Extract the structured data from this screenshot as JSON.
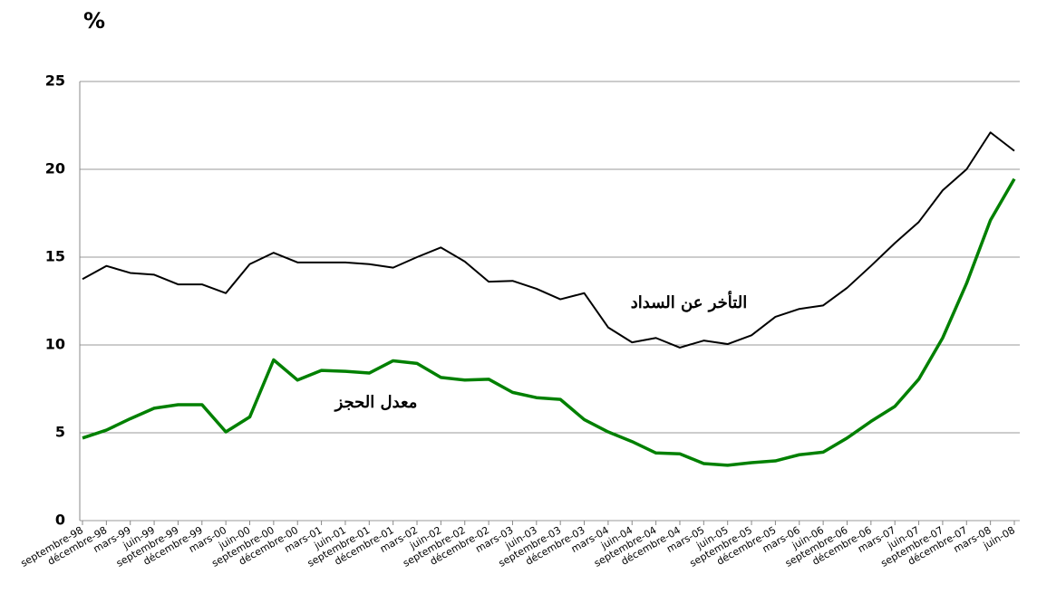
{
  "chart_data": {
    "type": "line",
    "y_label": "%",
    "categories": [
      "septembre-98",
      "décembre-98",
      "mars-99",
      "juin-99",
      "septembre-99",
      "décembre-99",
      "mars-00",
      "juin-00",
      "septembre-00",
      "décembre-00",
      "mars-01",
      "juin-01",
      "septembre-01",
      "décembre-01",
      "mars-02",
      "juin-02",
      "septembre-02",
      "décembre-02",
      "mars-03",
      "juin-03",
      "septembre-03",
      "décembre-03",
      "mars-04",
      "juin-04",
      "septembre-04",
      "décembre-04",
      "mars-05",
      "juin-05",
      "septembre-05",
      "décembre-05",
      "mars-06",
      "juin-06",
      "septembre-06",
      "décembre-06",
      "mars-07",
      "juin-07",
      "septembre-07",
      "décembre-07",
      "mars-08",
      "juin-08"
    ],
    "series": [
      {
        "name": "التأخر عن السداد",
        "color": "#000000",
        "values": [
          13.75,
          14.5,
          14.1,
          14.0,
          13.45,
          13.45,
          12.95,
          14.6,
          15.25,
          14.7,
          14.7,
          14.7,
          14.6,
          14.4,
          15.0,
          15.55,
          14.75,
          13.6,
          13.65,
          13.2,
          12.6,
          12.95,
          11.0,
          10.15,
          10.4,
          9.85,
          10.25,
          10.05,
          10.55,
          11.6,
          12.05,
          12.25,
          13.25,
          14.5,
          15.8,
          17.0,
          18.8,
          20.0,
          22.1,
          21.05
        ]
      },
      {
        "name": "معدل الحجز",
        "color": "#008000",
        "values": [
          4.7,
          5.15,
          5.8,
          6.4,
          6.6,
          6.6,
          5.05,
          5.9,
          9.15,
          8.0,
          8.55,
          8.5,
          8.4,
          9.1,
          8.95,
          8.15,
          8.0,
          8.05,
          7.3,
          7.0,
          6.9,
          5.75,
          5.05,
          4.5,
          3.85,
          3.8,
          3.25,
          3.15,
          3.3,
          3.4,
          3.75,
          3.9,
          4.7,
          5.65,
          6.5,
          8.05,
          10.4,
          13.5,
          17.1,
          19.45
        ]
      }
    ],
    "ylim": [
      0,
      25
    ],
    "yticks": [
      0,
      5,
      10,
      15,
      20,
      25
    ],
    "grid": true
  }
}
